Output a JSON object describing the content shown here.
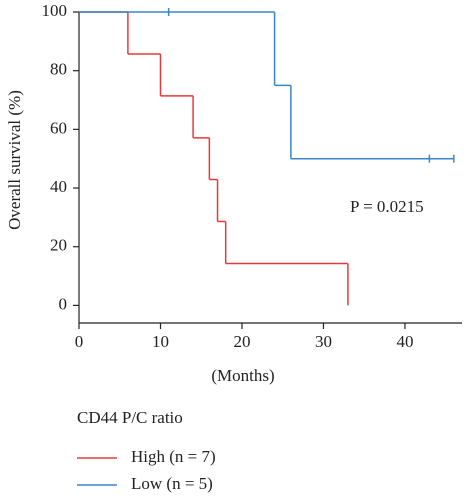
{
  "chart_data": {
    "type": "step",
    "y_label": "Overall survival (%)",
    "x_label": "(Months)",
    "annotation": "P = 0.0215",
    "legend_title": "CD44 P/C ratio",
    "xlim": [
      0,
      47
    ],
    "xticks": [
      0,
      10,
      20,
      30,
      40
    ],
    "ylim": [
      -6,
      100
    ],
    "yticks": [
      0,
      20,
      40,
      60,
      80,
      100
    ],
    "series": [
      {
        "name": "High (n = 7)",
        "color": "#e8393a",
        "x": [
          0,
          6,
          10,
          14,
          16,
          17,
          18,
          33
        ],
        "values": [
          100,
          85.7,
          71.4,
          57.1,
          42.9,
          28.6,
          14.3,
          0
        ]
      },
      {
        "name": "Low (n = 5)",
        "color": "#3a86c8",
        "x": [
          0,
          24,
          26,
          46
        ],
        "values": [
          100,
          75,
          50,
          50
        ],
        "censor_x": [
          11,
          43,
          46
        ],
        "censor_values": [
          100,
          50,
          50
        ]
      }
    ]
  }
}
